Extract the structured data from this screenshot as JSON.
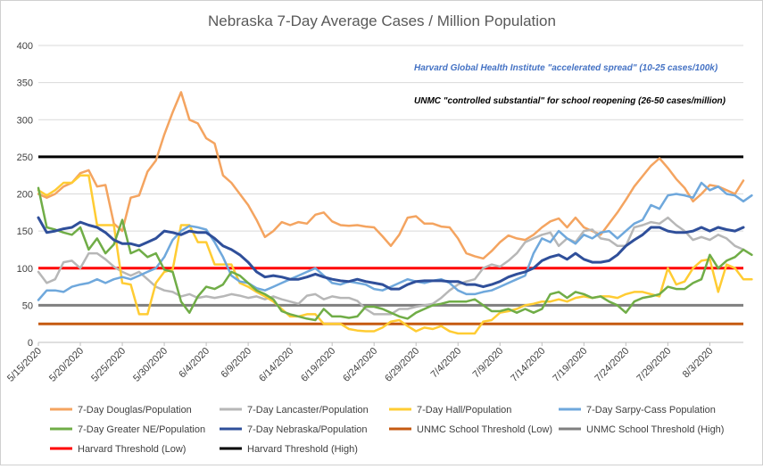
{
  "chart_data": {
    "type": "line",
    "title": "Nebraska 7-Day Average Cases / Million Population",
    "xlabel": "",
    "ylabel": "",
    "ylim": [
      0,
      400
    ],
    "yticks": [
      "0",
      "50",
      "100",
      "150",
      "200",
      "250",
      "300",
      "350",
      "400"
    ],
    "xticks": [
      "5/15/2020",
      "5/20/2020",
      "5/25/2020",
      "5/30/2020",
      "6/4/2020",
      "6/9/2020",
      "6/14/2020",
      "6/19/2020",
      "6/24/2020",
      "6/29/2020",
      "7/4/2020",
      "7/9/2020",
      "7/14/2020",
      "7/19/2020",
      "7/24/2020",
      "7/29/2020",
      "8/3/2020"
    ],
    "grid": "horizontal",
    "legend_position": "bottom",
    "annotations": [
      {
        "text": "Harvard Global Health Institute \"accelerated spread\" (10-25 cases/100k)",
        "color": "#4472C4"
      },
      {
        "text": "UNMC \"controlled substantial\" for school reopening (26-50 cases/million)",
        "color": "#000000"
      }
    ],
    "series": [
      {
        "name": "7-Day Douglas/Population",
        "color": "#F4A460",
        "values": [
          200,
          195,
          200,
          210,
          215,
          228,
          232,
          210,
          212,
          160,
          150,
          195,
          198,
          230,
          245,
          280,
          310,
          337,
          300,
          295,
          275,
          268,
          225,
          215,
          200,
          185,
          165,
          142,
          150,
          162,
          158,
          162,
          160,
          172,
          175,
          163,
          158,
          157,
          158,
          156,
          155,
          143,
          130,
          145,
          168,
          170,
          160,
          160,
          156,
          155,
          140,
          120,
          116,
          113,
          123,
          135,
          144,
          140,
          138,
          145,
          155,
          163,
          167,
          155,
          168,
          155,
          150,
          145,
          160,
          175,
          192,
          210,
          224,
          238,
          248,
          235,
          220,
          208,
          190,
          200,
          212,
          210,
          205,
          200,
          218
        ]
      },
      {
        "name": "7-Day Lancaster/Population",
        "color": "#B7B7B7",
        "values": [
          95,
          80,
          85,
          108,
          110,
          100,
          120,
          120,
          112,
          102,
          95,
          90,
          95,
          85,
          75,
          70,
          68,
          62,
          65,
          60,
          62,
          60,
          62,
          65,
          63,
          60,
          62,
          58,
          62,
          58,
          55,
          52,
          63,
          65,
          58,
          62,
          60,
          60,
          56,
          45,
          38,
          38,
          38,
          45,
          45,
          48,
          50,
          52,
          60,
          70,
          78,
          82,
          85,
          100,
          105,
          102,
          110,
          120,
          135,
          140,
          145,
          148,
          130,
          140,
          135,
          150,
          152,
          140,
          138,
          130,
          130,
          155,
          158,
          162,
          160,
          168,
          158,
          150,
          138,
          142,
          138,
          145,
          140,
          130,
          125
        ]
      },
      {
        "name": "7-Day Hall/Population",
        "color": "#FFCC33",
        "values": [
          205,
          198,
          205,
          215,
          215,
          225,
          225,
          158,
          158,
          158,
          80,
          78,
          38,
          38,
          80,
          95,
          98,
          158,
          158,
          135,
          135,
          105,
          105,
          105,
          80,
          75,
          68,
          62,
          55,
          45,
          35,
          35,
          38,
          38,
          25,
          25,
          25,
          18,
          16,
          15,
          15,
          20,
          28,
          30,
          22,
          15,
          20,
          18,
          22,
          15,
          12,
          12,
          12,
          28,
          30,
          40,
          42,
          45,
          50,
          52,
          55,
          55,
          58,
          55,
          60,
          62,
          60,
          62,
          62,
          60,
          65,
          68,
          68,
          65,
          62,
          100,
          78,
          82,
          100,
          110,
          112,
          68,
          105,
          100,
          85,
          85
        ]
      },
      {
        "name": "7-Day Sarpy-Cass Population",
        "color": "#6FA8DC",
        "values": [
          57,
          70,
          70,
          68,
          75,
          78,
          80,
          85,
          80,
          85,
          88,
          85,
          90,
          95,
          100,
          115,
          138,
          150,
          157,
          155,
          152,
          135,
          115,
          90,
          82,
          80,
          73,
          70,
          75,
          80,
          85,
          90,
          95,
          100,
          90,
          80,
          78,
          82,
          80,
          78,
          72,
          70,
          75,
          80,
          85,
          82,
          80,
          83,
          85,
          80,
          70,
          65,
          65,
          68,
          70,
          75,
          80,
          85,
          90,
          120,
          140,
          135,
          150,
          140,
          133,
          145,
          140,
          148,
          150,
          140,
          150,
          160,
          165,
          185,
          180,
          198,
          200,
          198,
          195,
          215,
          205,
          210,
          200,
          198,
          190,
          198
        ]
      },
      {
        "name": "7-Day Greater NE/Population",
        "color": "#70AD47",
        "values": [
          208,
          155,
          152,
          148,
          145,
          155,
          125,
          140,
          120,
          132,
          165,
          120,
          125,
          115,
          120,
          98,
          95,
          55,
          40,
          62,
          75,
          72,
          78,
          95,
          90,
          80,
          70,
          65,
          58,
          42,
          38,
          35,
          32,
          30,
          45,
          35,
          35,
          33,
          35,
          48,
          48,
          45,
          40,
          35,
          32,
          40,
          45,
          50,
          52,
          55,
          55,
          55,
          58,
          50,
          42,
          42,
          45,
          40,
          45,
          40,
          45,
          65,
          68,
          60,
          68,
          65,
          60,
          62,
          55,
          50,
          40,
          55,
          60,
          62,
          65,
          75,
          72,
          72,
          80,
          85,
          118,
          100,
          110,
          115,
          125,
          118
        ]
      },
      {
        "name": "7-Day Nebraska/Population",
        "color": "#2F4F9A",
        "values": [
          168,
          148,
          150,
          153,
          155,
          162,
          158,
          155,
          148,
          138,
          133,
          133,
          130,
          135,
          140,
          150,
          148,
          145,
          150,
          148,
          148,
          140,
          130,
          125,
          118,
          108,
          95,
          88,
          90,
          88,
          85,
          85,
          88,
          92,
          88,
          85,
          83,
          82,
          85,
          82,
          80,
          78,
          72,
          72,
          78,
          82,
          83,
          83,
          83,
          82,
          82,
          78,
          78,
          75,
          78,
          82,
          88,
          92,
          95,
          100,
          110,
          115,
          118,
          112,
          120,
          112,
          108,
          108,
          110,
          118,
          130,
          138,
          145,
          155,
          155,
          150,
          148,
          148,
          150,
          155,
          150,
          155,
          152,
          150,
          155
        ]
      },
      {
        "name": "UNMC School Threshold (Low)",
        "color": "#C55A11",
        "values": [
          25,
          25
        ]
      },
      {
        "name": "UNMC School Threshold (High)",
        "color": "#7F7F7F",
        "values": [
          50,
          50
        ]
      },
      {
        "name": "Harvard Threshold (Low)",
        "color": "#FF0000",
        "values": [
          100,
          100
        ]
      },
      {
        "name": "Harvard Threshold (High)",
        "color": "#000000",
        "values": [
          250,
          250
        ]
      }
    ]
  }
}
